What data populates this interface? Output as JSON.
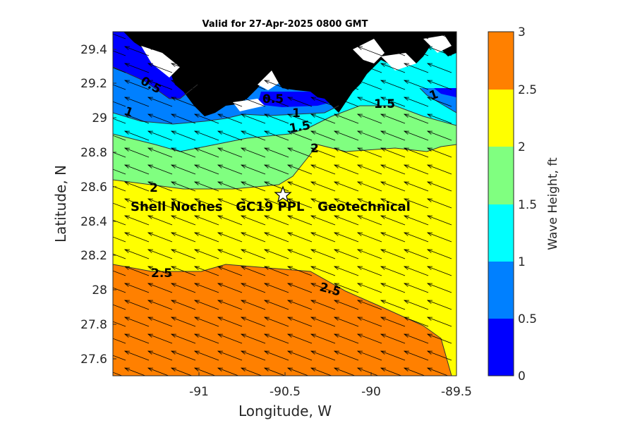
{
  "title": "Valid for 27-Apr-2025 0800 GMT",
  "x_axis": {
    "label": "Longitude, W",
    "ticks": [
      "-91",
      "-90.5",
      "-90",
      "-89.5"
    ]
  },
  "y_axis": {
    "label": "Latitude, N",
    "ticks": [
      "29.4",
      "29.2",
      "29",
      "28.8",
      "28.6",
      "28.4",
      "28.2",
      "28",
      "27.8",
      "27.6"
    ]
  },
  "colorbar": {
    "label": "Wave Height, ft",
    "ticks": [
      "0",
      "0.5",
      "1",
      "1.5",
      "2",
      "2.5",
      "3"
    ],
    "colors": [
      "#0000ff",
      "#0080ff",
      "#00ffff",
      "#80ff80",
      "#ffff00",
      "#ff8000"
    ]
  },
  "site": {
    "name": "Shell Noches   GC19 PPL   Geotechnical",
    "marker": "star-icon"
  },
  "contour_labels": [
    {
      "id": "c05a",
      "text": "0.5"
    },
    {
      "id": "c05b",
      "text": "0.5"
    },
    {
      "id": "c1a",
      "text": "1"
    },
    {
      "id": "c1b",
      "text": "1"
    },
    {
      "id": "c1c",
      "text": "1"
    },
    {
      "id": "c15a",
      "text": "1.5"
    },
    {
      "id": "c15b",
      "text": "1.5"
    },
    {
      "id": "c2a",
      "text": "2"
    },
    {
      "id": "c2b",
      "text": "2"
    },
    {
      "id": "c25a",
      "text": "2.5"
    },
    {
      "id": "c25b",
      "text": "2.5"
    }
  ],
  "map_data": {
    "lon_range": [
      -91.5,
      -89.5
    ],
    "lat_range": [
      27.5,
      29.5
    ],
    "land_color": "#000000",
    "wave_direction": "toward west-northwest (arrows)"
  }
}
